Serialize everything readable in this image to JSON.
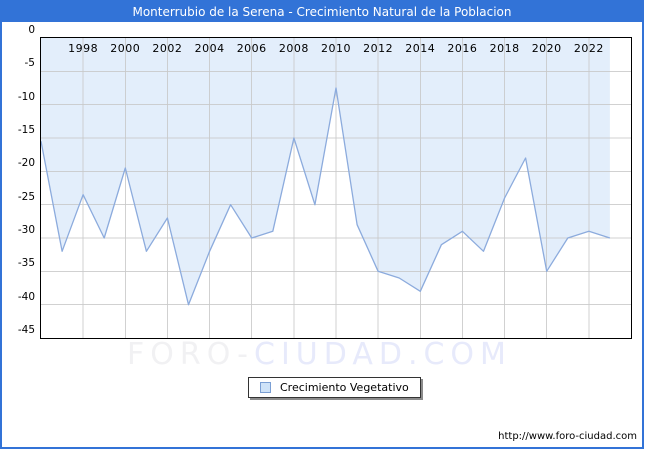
{
  "title_bar": {
    "text": "Monterrubio de la Serena - Crecimiento Natural de la Poblacion"
  },
  "watermark": {
    "left": "FORO-",
    "right": "CIUDAD.COM"
  },
  "legend": {
    "label": "Crecimiento Vegetativo"
  },
  "footer": {
    "url": "http://www.foro-ciudad.com"
  },
  "colors": {
    "frame": "#3273d7",
    "titlebar_bg": "#3273d7",
    "titlebar_fg": "#ffffff",
    "area_fill": "#e3eefb",
    "line": "#8cabdd",
    "grid": "#c9c9c9",
    "plot_border": "#000000",
    "legend_swatch_fill": "#cfe3f8",
    "legend_swatch_border": "#7b9fd4",
    "watermark_left": "#f1f1f3",
    "watermark_right": "#e7eafb"
  },
  "chart_data": {
    "type": "area",
    "title": "Monterrubio de la Serena - Crecimiento Natural de la Poblacion",
    "series": [
      {
        "name": "Crecimiento Vegetativo",
        "x": [
          1996,
          1997,
          1998,
          1999,
          2000,
          2001,
          2002,
          2003,
          2004,
          2005,
          2006,
          2007,
          2008,
          2009,
          2010,
          2011,
          2012,
          2013,
          2014,
          2015,
          2016,
          2017,
          2018,
          2019,
          2020,
          2021,
          2022,
          2023
        ],
        "values": [
          -15.5,
          -32,
          -23.5,
          -30,
          -19.5,
          -32,
          -27,
          -40,
          -32,
          -25,
          -30,
          -29,
          -15,
          -25,
          -7.5,
          -28,
          -35,
          -36,
          -38,
          -31,
          -29,
          -32,
          -24,
          -18,
          -35,
          -30,
          -29,
          -30
        ]
      }
    ],
    "x_tick_labels": [
      "1998",
      "2000",
      "2002",
      "2004",
      "2006",
      "2008",
      "2010",
      "2012",
      "2014",
      "2016",
      "2018",
      "2020",
      "2022"
    ],
    "y_ticks": [
      0,
      -5,
      -10,
      -15,
      -20,
      -25,
      -30,
      -35,
      -40,
      -45
    ],
    "xlim": [
      1996,
      2024
    ],
    "ylim": [
      -45,
      0
    ],
    "grid": true,
    "legend_position": "bottom-center",
    "xlabel": "",
    "ylabel": ""
  }
}
